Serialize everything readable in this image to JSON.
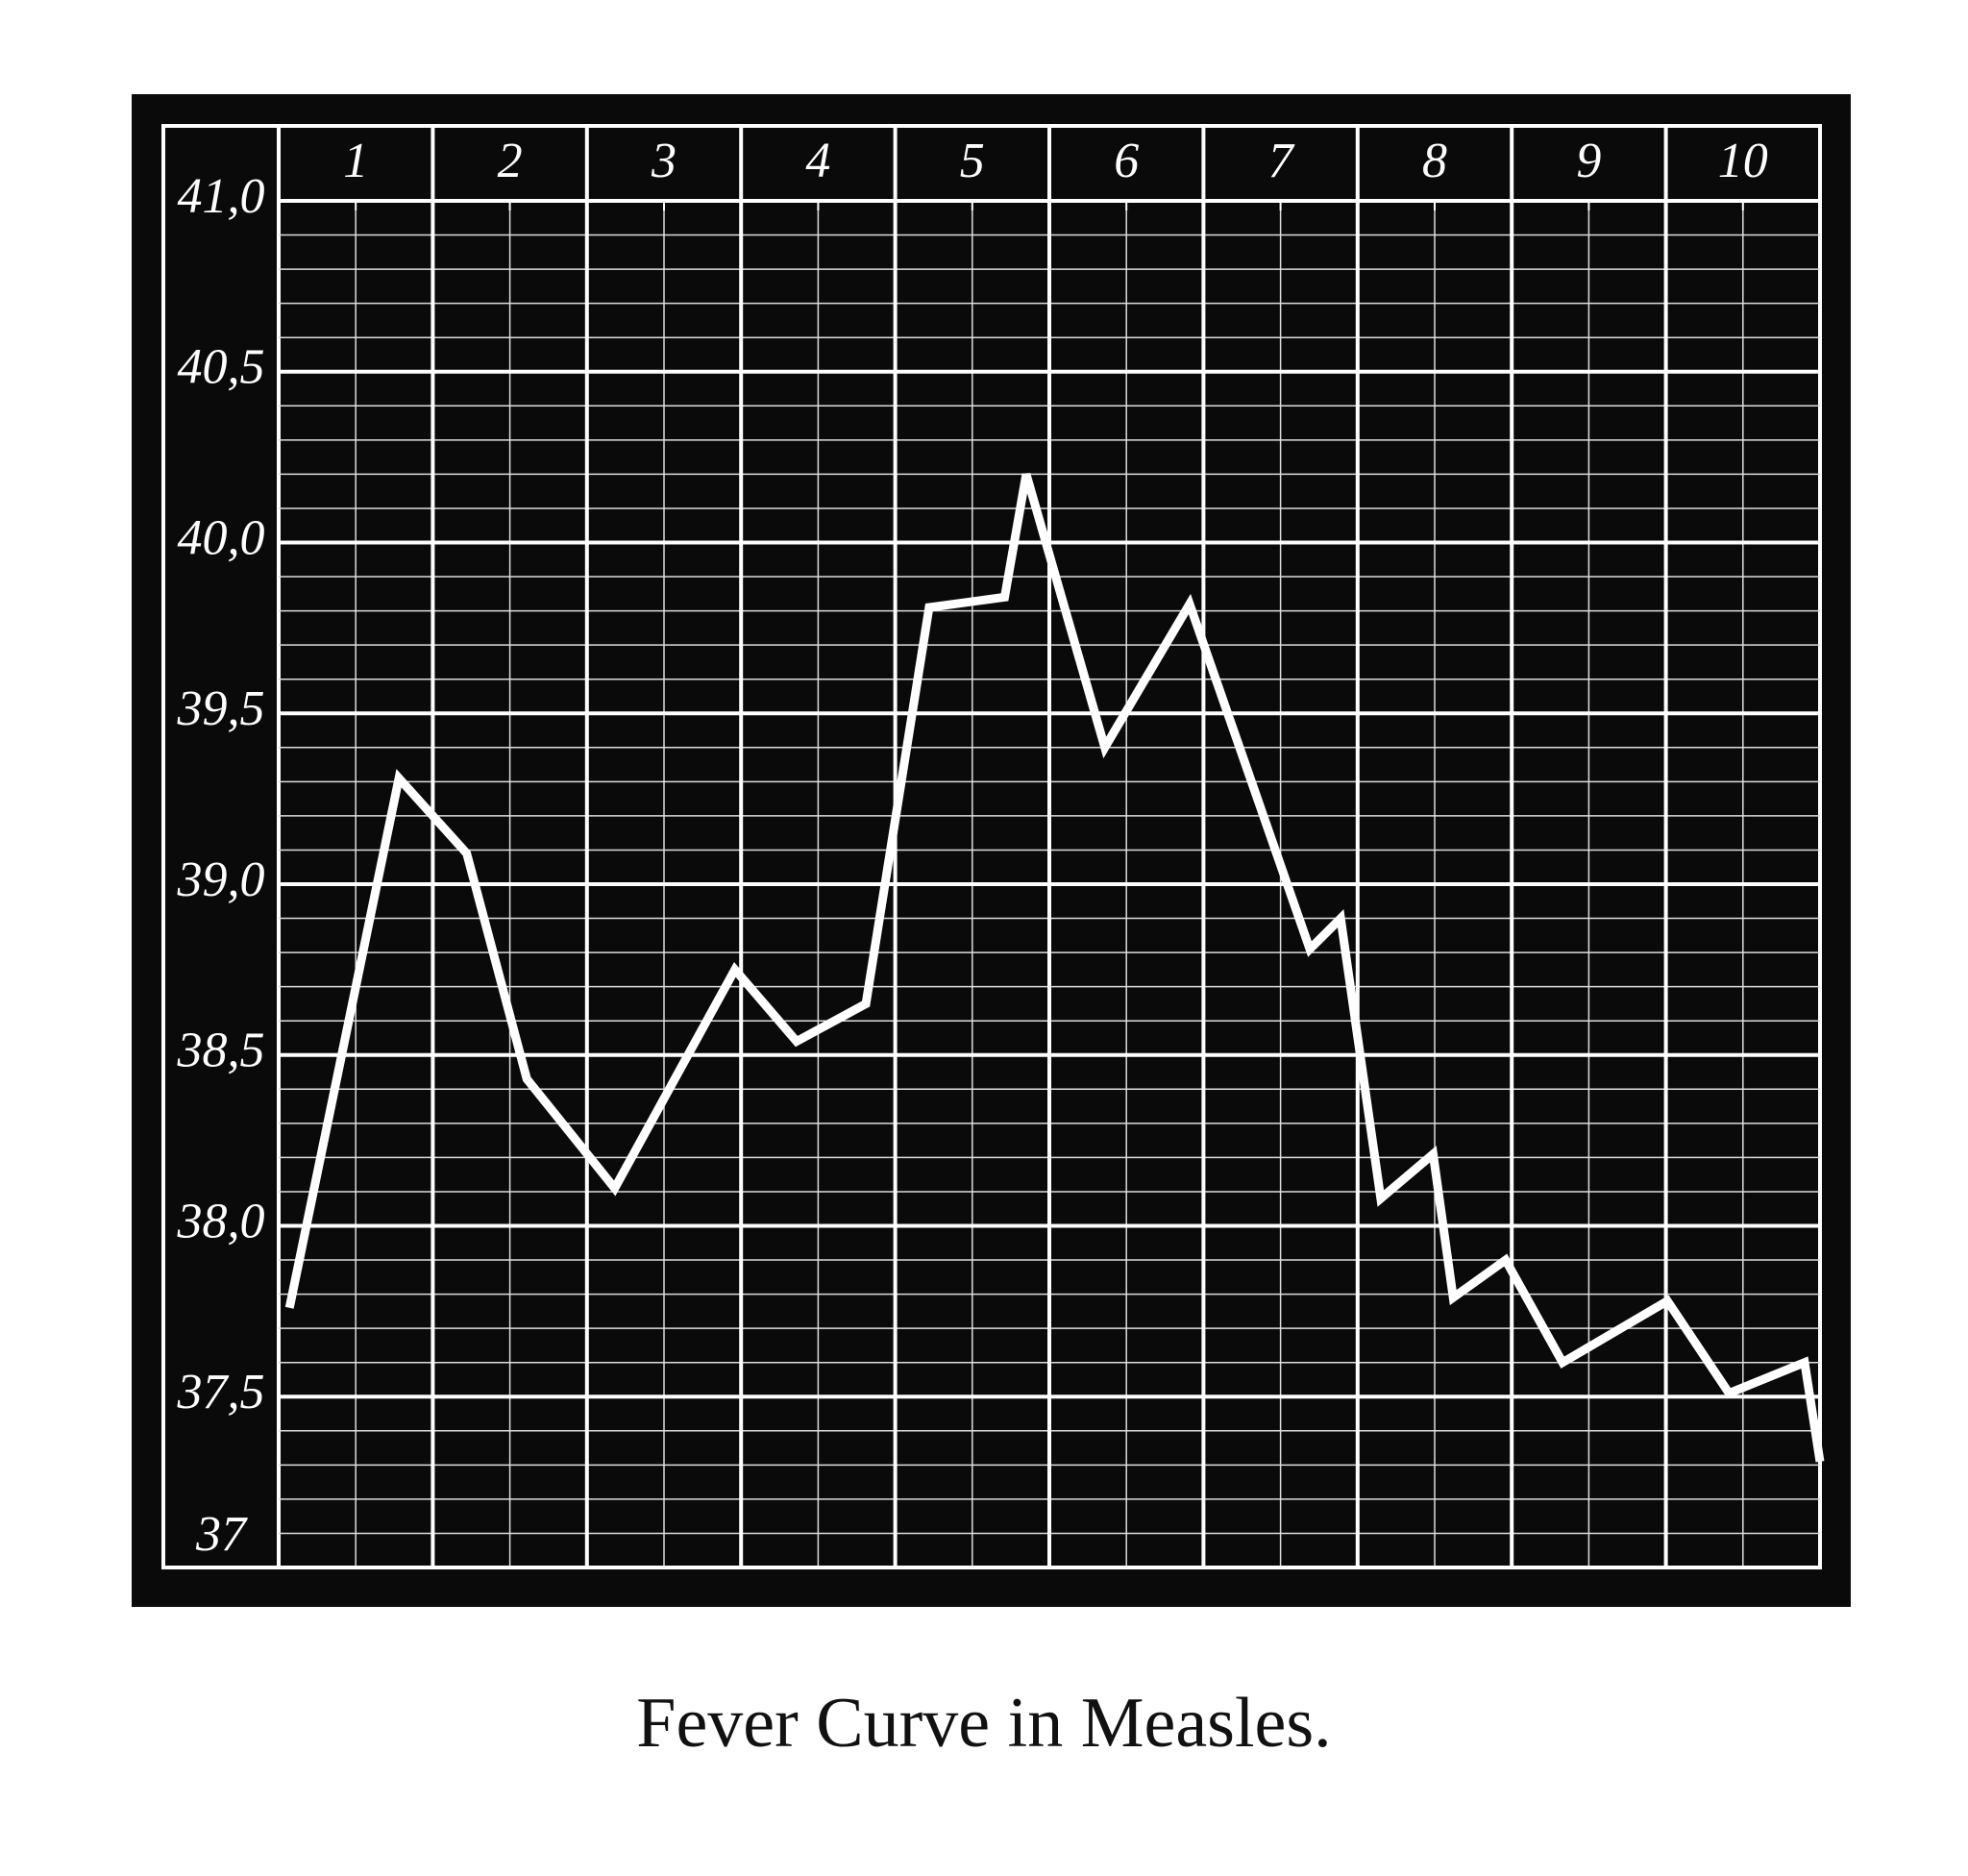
{
  "chart_data": {
    "type": "line",
    "title": "Fever Curve in Measles.",
    "x": [
      0.07,
      0.78,
      1.22,
      1.61,
      2.18,
      2.96,
      3.36,
      3.81,
      4.22,
      4.71,
      4.85,
      5.36,
      5.91,
      6.69,
      6.89,
      7.15,
      7.49,
      7.62,
      7.96,
      8.33,
      9.01,
      9.41,
      9.9,
      10.0
    ],
    "values": [
      37.76,
      39.31,
      39.09,
      38.43,
      38.11,
      38.75,
      38.54,
      38.65,
      39.81,
      39.84,
      40.2,
      39.4,
      39.82,
      38.81,
      38.9,
      38.08,
      38.21,
      37.79,
      37.9,
      37.6,
      37.78,
      37.51,
      37.6,
      37.31
    ],
    "color": "#ffffff",
    "xlim": [
      0,
      10
    ],
    "xticks": [
      {
        "value": 0.5,
        "label": "1"
      },
      {
        "value": 1.5,
        "label": "2"
      },
      {
        "value": 2.5,
        "label": "3"
      },
      {
        "value": 3.5,
        "label": "4"
      },
      {
        "value": 4.5,
        "label": "5"
      },
      {
        "value": 5.5,
        "label": "6"
      },
      {
        "value": 6.5,
        "label": "7"
      },
      {
        "value": 7.5,
        "label": "8"
      },
      {
        "value": 8.5,
        "label": "9"
      },
      {
        "value": 9.5,
        "label": "10"
      }
    ],
    "ylim": [
      37,
      41
    ],
    "yticks": [
      37,
      {
        "value": 37.5,
        "label": "37,5"
      },
      {
        "value": 38,
        "label": "38,0"
      },
      {
        "value": 38.5,
        "label": "38,5"
      },
      {
        "value": 39,
        "label": "39,0"
      },
      {
        "value": 39.5,
        "label": "39,5"
      },
      {
        "value": 40,
        "label": "40,0"
      },
      {
        "value": 40.5,
        "label": "40,5"
      },
      {
        "value": 41,
        "label": "41,0"
      }
    ],
    "grid": true
  }
}
